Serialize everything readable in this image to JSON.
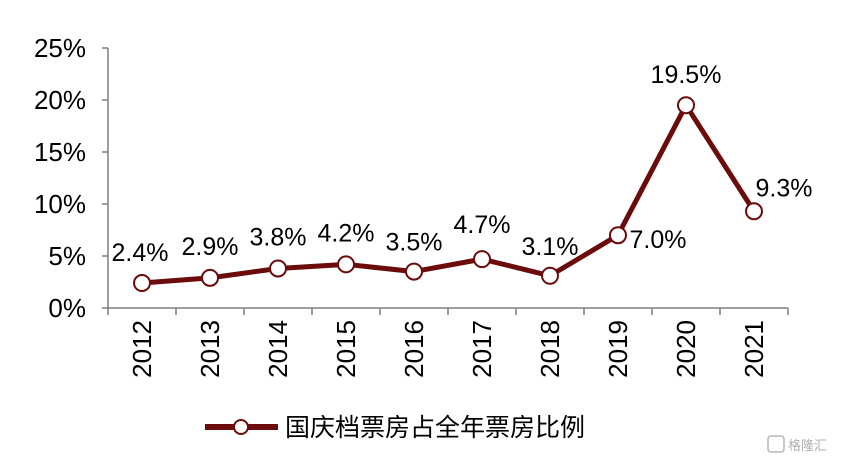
{
  "chart_data": {
    "type": "line",
    "title": "",
    "xlabel": "",
    "ylabel": "",
    "categories": [
      "2012",
      "2013",
      "2014",
      "2015",
      "2016",
      "2017",
      "2018",
      "2019",
      "2020",
      "2021"
    ],
    "series": [
      {
        "name": "国庆档票房占全年票房比例",
        "values": [
          2.4,
          2.9,
          3.8,
          4.2,
          3.5,
          4.7,
          3.1,
          7.0,
          19.5,
          9.3
        ],
        "data_labels": [
          "2.4%",
          "2.9%",
          "3.8%",
          "4.2%",
          "3.5%",
          "4.7%",
          "3.1%",
          "7.0%",
          "19.5%",
          "9.3%"
        ]
      }
    ],
    "ylim": [
      0,
      25
    ],
    "y_ticks": [
      0,
      5,
      10,
      15,
      20,
      25
    ],
    "y_tick_labels": [
      "0%",
      "5%",
      "10%",
      "15%",
      "20%",
      "25%"
    ],
    "grid": false,
    "legend_position": "bottom",
    "colors": {
      "series": "#6b0b0b",
      "marker_fill": "#ffffff",
      "axis": "#7f7f7f"
    }
  },
  "watermark": {
    "text": "格隆汇"
  }
}
